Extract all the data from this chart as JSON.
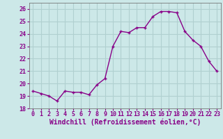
{
  "x": [
    0,
    1,
    2,
    3,
    4,
    5,
    6,
    7,
    8,
    9,
    10,
    11,
    12,
    13,
    14,
    15,
    16,
    17,
    18,
    19,
    20,
    21,
    22,
    23
  ],
  "y": [
    19.4,
    19.2,
    19.0,
    18.6,
    19.4,
    19.3,
    19.3,
    19.1,
    19.9,
    20.4,
    23.0,
    24.2,
    24.1,
    24.5,
    24.5,
    25.4,
    25.8,
    25.8,
    25.7,
    24.2,
    23.5,
    23.0,
    21.8,
    21.0
  ],
  "line_color": "#880088",
  "marker": "+",
  "markersize": 3.5,
  "linewidth": 1.0,
  "markeredgewidth": 1.0,
  "xlabel": "Windchill (Refroidissement éolien,°C)",
  "xlim": [
    -0.5,
    23.5
  ],
  "ylim": [
    18,
    26.5
  ],
  "yticks": [
    18,
    19,
    20,
    21,
    22,
    23,
    24,
    25,
    26
  ],
  "xticks": [
    0,
    1,
    2,
    3,
    4,
    5,
    6,
    7,
    8,
    9,
    10,
    11,
    12,
    13,
    14,
    15,
    16,
    17,
    18,
    19,
    20,
    21,
    22,
    23
  ],
  "bg_color": "#cce8e8",
  "grid_color": "#b0d0d0",
  "tick_label_fontsize": 6.0,
  "xlabel_fontsize": 7.0,
  "text_color": "#880088"
}
